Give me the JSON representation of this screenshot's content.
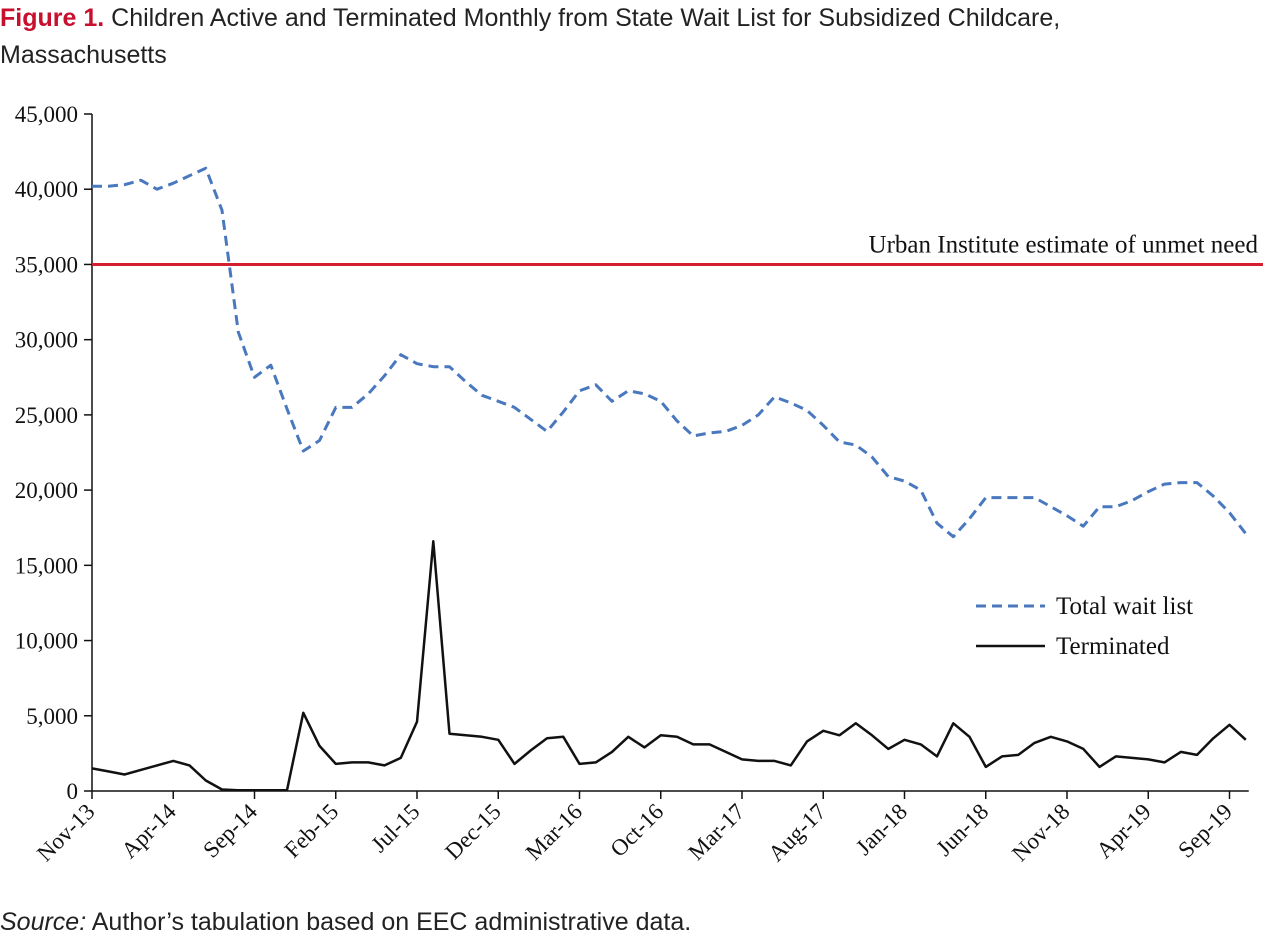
{
  "figure": {
    "label": "Figure 1.",
    "title_line1": "Children Active and Terminated Monthly from State Wait List for Subsidized Childcare,",
    "title_line2": "Massachusetts",
    "source_label": "Source:",
    "source_text": "Author’s tabulation based on EEC administrative data."
  },
  "colors": {
    "total_wait_list": "#4a78be",
    "terminated": "#111111",
    "reference_line": "#d4202e",
    "figure_label": "#c8102e"
  },
  "chart_data": {
    "type": "line",
    "title": "Children Active and Terminated Monthly from State Wait List for Subsidized Childcare, Massachusetts",
    "xlabel": "",
    "ylabel": "",
    "ylim": [
      0,
      45000
    ],
    "yticks": [
      0,
      5000,
      10000,
      15000,
      20000,
      25000,
      30000,
      35000,
      40000,
      45000
    ],
    "ytick_labels": [
      "0",
      "5,000",
      "10,000",
      "15,000",
      "20,000",
      "25,000",
      "30,000",
      "35,000",
      "40,000",
      "45,000"
    ],
    "x_start": "Nov-13",
    "x_tick_labels": [
      "Nov-13",
      "Apr-14",
      "Sep-14",
      "Feb-15",
      "Jul-15",
      "Dec-15",
      "Mar-16",
      "Oct-16",
      "Mar-17",
      "Aug-17",
      "Jan-18",
      "Jun-18",
      "Nov-18",
      "Apr-19",
      "Sep-19"
    ],
    "grid": false,
    "legend_position": "right",
    "reference_line": {
      "value": 35000,
      "label": "Urban Institute estimate of unmet need"
    },
    "series": [
      {
        "name": "Total wait list",
        "style": "dashed",
        "points": [
          [
            0,
            40200
          ],
          [
            1,
            40200
          ],
          [
            2,
            40300
          ],
          [
            3,
            40600
          ],
          [
            4,
            40000
          ],
          [
            5,
            40400
          ],
          [
            6,
            40900
          ],
          [
            7,
            41400
          ],
          [
            8,
            38600
          ],
          [
            9,
            30500
          ],
          [
            10,
            27500
          ],
          [
            11,
            28300
          ],
          [
            12,
            25400
          ],
          [
            13,
            22600
          ],
          [
            14,
            23300
          ],
          [
            15,
            25500
          ],
          [
            16,
            25500
          ],
          [
            17,
            26400
          ],
          [
            18,
            27600
          ],
          [
            19,
            29000
          ],
          [
            20,
            28400
          ],
          [
            21,
            28200
          ],
          [
            22,
            28200
          ],
          [
            23,
            27200
          ],
          [
            24,
            26300
          ],
          [
            25,
            25900
          ],
          [
            26,
            25500
          ],
          [
            27,
            24700
          ],
          [
            28,
            23900
          ],
          [
            29,
            25200
          ],
          [
            30,
            26600
          ],
          [
            31,
            27000
          ],
          [
            32,
            25900
          ],
          [
            33,
            26600
          ],
          [
            34,
            26400
          ],
          [
            35,
            25900
          ],
          [
            36,
            24600
          ],
          [
            37,
            23600
          ],
          [
            38,
            23800
          ],
          [
            39,
            23900
          ],
          [
            40,
            24300
          ],
          [
            41,
            25000
          ],
          [
            42,
            26200
          ],
          [
            43,
            25800
          ],
          [
            44,
            25300
          ],
          [
            45,
            24300
          ],
          [
            46,
            23200
          ],
          [
            47,
            23000
          ],
          [
            48,
            22200
          ],
          [
            49,
            20900
          ],
          [
            50,
            20600
          ],
          [
            51,
            20000
          ],
          [
            52,
            17800
          ],
          [
            53,
            16900
          ],
          [
            54,
            18100
          ],
          [
            55,
            19500
          ],
          [
            56,
            19500
          ],
          [
            57,
            19500
          ],
          [
            58,
            19500
          ],
          [
            59,
            18900
          ],
          [
            60,
            18300
          ],
          [
            61,
            17600
          ],
          [
            62,
            18900
          ],
          [
            63,
            18900
          ],
          [
            64,
            19300
          ],
          [
            65,
            19900
          ],
          [
            66,
            20400
          ],
          [
            67,
            20500
          ],
          [
            68,
            20500
          ],
          [
            69,
            19600
          ],
          [
            70,
            18500
          ],
          [
            71,
            17100
          ]
        ]
      },
      {
        "name": "Terminated",
        "style": "solid",
        "points": [
          [
            0,
            1500
          ],
          [
            1,
            1300
          ],
          [
            2,
            1100
          ],
          [
            3,
            1400
          ],
          [
            4,
            1700
          ],
          [
            5,
            2000
          ],
          [
            6,
            1700
          ],
          [
            7,
            700
          ],
          [
            8,
            100
          ],
          [
            9,
            50
          ],
          [
            10,
            50
          ],
          [
            11,
            50
          ],
          [
            12,
            50
          ],
          [
            13,
            5200
          ],
          [
            14,
            3000
          ],
          [
            15,
            1800
          ],
          [
            16,
            1900
          ],
          [
            17,
            1900
          ],
          [
            18,
            1700
          ],
          [
            19,
            2200
          ],
          [
            20,
            4600
          ],
          [
            21,
            16600
          ],
          [
            22,
            3800
          ],
          [
            23,
            3700
          ],
          [
            24,
            3600
          ],
          [
            25,
            3400
          ],
          [
            26,
            1800
          ],
          [
            27,
            2700
          ],
          [
            28,
            3500
          ],
          [
            29,
            3600
          ],
          [
            30,
            1800
          ],
          [
            31,
            1900
          ],
          [
            32,
            2600
          ],
          [
            33,
            3600
          ],
          [
            34,
            2900
          ],
          [
            35,
            3700
          ],
          [
            36,
            3600
          ],
          [
            37,
            3100
          ],
          [
            38,
            3100
          ],
          [
            39,
            2600
          ],
          [
            40,
            2100
          ],
          [
            41,
            2000
          ],
          [
            42,
            2000
          ],
          [
            43,
            1700
          ],
          [
            44,
            3300
          ],
          [
            45,
            4000
          ],
          [
            46,
            3700
          ],
          [
            47,
            4500
          ],
          [
            48,
            3700
          ],
          [
            49,
            2800
          ],
          [
            50,
            3400
          ],
          [
            51,
            3100
          ],
          [
            52,
            2300
          ],
          [
            53,
            4500
          ],
          [
            54,
            3600
          ],
          [
            55,
            1600
          ],
          [
            56,
            2300
          ],
          [
            57,
            2400
          ],
          [
            58,
            3200
          ],
          [
            59,
            3600
          ],
          [
            60,
            3300
          ],
          [
            61,
            2800
          ],
          [
            62,
            1600
          ],
          [
            63,
            2300
          ],
          [
            64,
            2200
          ],
          [
            65,
            2100
          ],
          [
            66,
            1900
          ],
          [
            67,
            2600
          ],
          [
            68,
            2400
          ],
          [
            69,
            3500
          ],
          [
            70,
            4400
          ],
          [
            71,
            3400
          ]
        ]
      }
    ]
  }
}
